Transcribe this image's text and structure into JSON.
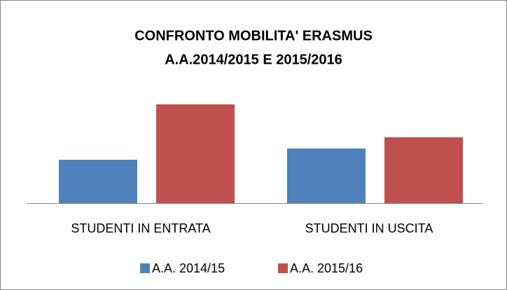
{
  "chart_data": {
    "type": "bar",
    "title": [
      "CONFRONTO MOBILITA' ERASMUS",
      "A.A.2014/2015 E 2015/2016"
    ],
    "categories": [
      "STUDENTI IN ENTRATA",
      "STUDENTI IN USCITA"
    ],
    "series": [
      {
        "name": "A.A. 2014/15",
        "color": "#4f81bd",
        "values": [
          62,
          78
        ]
      },
      {
        "name": "A.A. 2015/16",
        "color": "#c0504d",
        "values": [
          141,
          94
        ]
      }
    ],
    "ylim": [
      0,
      170
    ]
  }
}
